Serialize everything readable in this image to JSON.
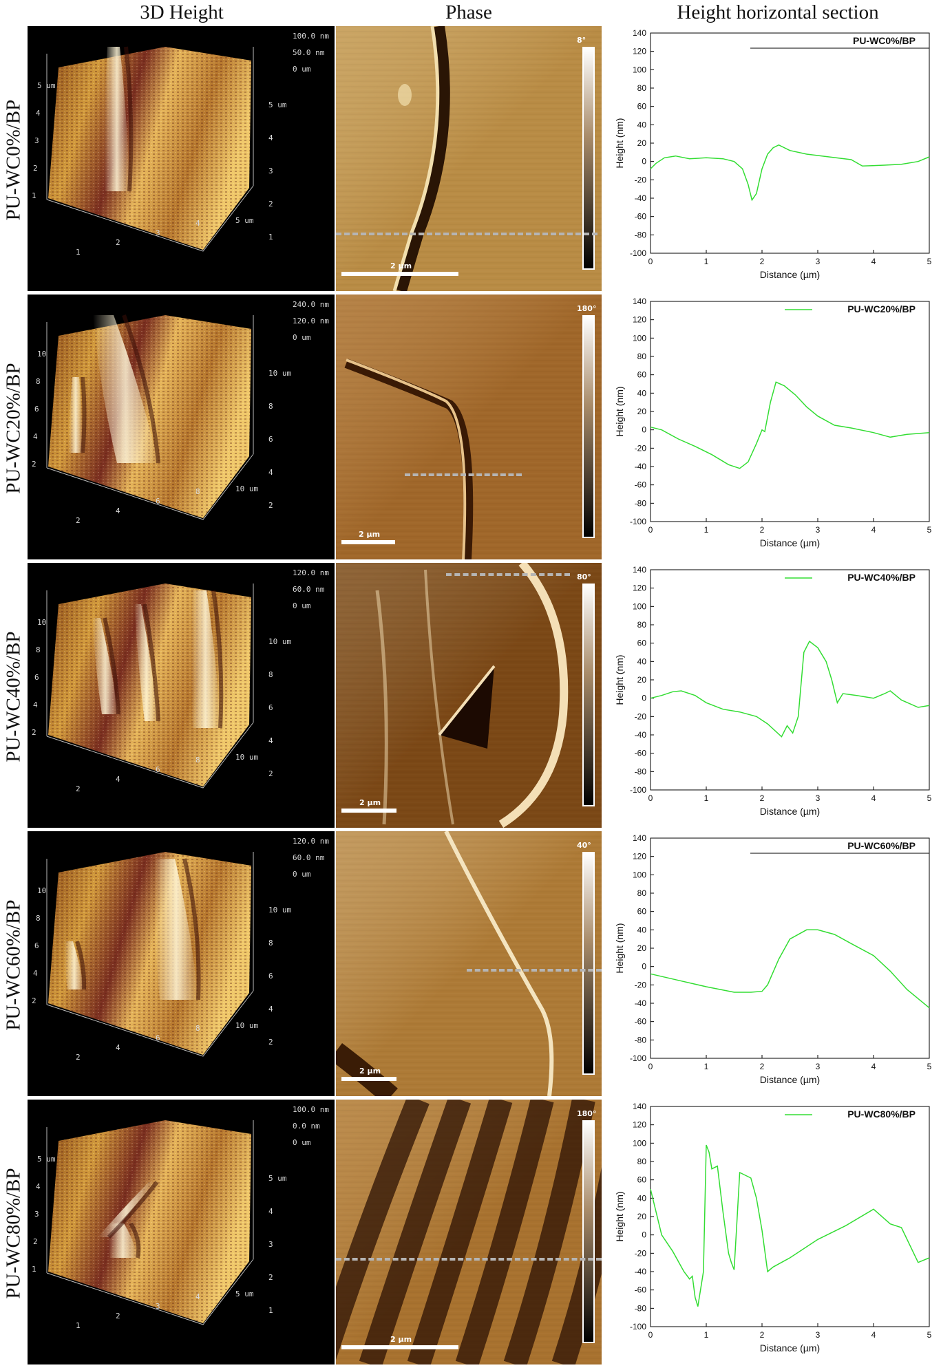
{
  "columns": {
    "height3d": "3D Height",
    "phase": "Phase",
    "section": "Height horizontal section"
  },
  "samples": [
    {
      "label": "PU-WC0%/BP",
      "height3d": {
        "z_scale": [
          "100.0 nm",
          "50.0 nm",
          "0 um"
        ],
        "x_ticks": [
          "1",
          "2",
          "3",
          "4",
          "5 um"
        ],
        "y_ticks": [
          "1",
          "2",
          "3",
          "4",
          "5 um"
        ],
        "left_ticks": [
          "1",
          "2",
          "3",
          "4",
          "5 um"
        ]
      },
      "phase": {
        "colorbar_max": "8°",
        "scalebar": "2 µm",
        "colors": {
          "base": "#b98c45",
          "dark": "#2a1505",
          "light": "#f2dfae"
        }
      }
    },
    {
      "label": "PU-WC20%/BP",
      "height3d": {
        "z_scale": [
          "240.0 nm",
          "120.0 nm",
          "0 um"
        ],
        "x_ticks": [
          "2",
          "4",
          "6",
          "8",
          "10 um"
        ],
        "y_ticks": [
          "2",
          "4",
          "6",
          "8",
          "10 um"
        ],
        "left_ticks": [
          "2",
          "4",
          "6",
          "8",
          "10"
        ]
      },
      "phase": {
        "colorbar_max": "180°",
        "scalebar": "2 µm",
        "colors": {
          "base": "#a0672a",
          "dark": "#3a1a05",
          "light": "#e7c28a"
        }
      }
    },
    {
      "label": "PU-WC40%/BP",
      "height3d": {
        "z_scale": [
          "120.0 nm",
          "60.0 nm",
          "0 um"
        ],
        "x_ticks": [
          "2",
          "4",
          "6",
          "8",
          "10 um"
        ],
        "y_ticks": [
          "2",
          "4",
          "6",
          "8",
          "10 um"
        ],
        "left_ticks": [
          "2",
          "4",
          "6",
          "8",
          "10"
        ]
      },
      "phase": {
        "colorbar_max": "80°",
        "scalebar": "2 µm",
        "colors": {
          "base": "#9b5c1c",
          "dark": "#1c0a02",
          "light": "#f4dfb6"
        }
      }
    },
    {
      "label": "PU-WC60%/BP",
      "height3d": {
        "z_scale": [
          "120.0 nm",
          "60.0 nm",
          "0 um"
        ],
        "x_ticks": [
          "2",
          "4",
          "6",
          "8",
          "10 um"
        ],
        "y_ticks": [
          "2",
          "4",
          "6",
          "8",
          "10 um"
        ],
        "left_ticks": [
          "2",
          "4",
          "6",
          "8",
          "10"
        ]
      },
      "phase": {
        "colorbar_max": "40°",
        "scalebar": "2 µm",
        "colors": {
          "base": "#ad7a36",
          "dark": "#3a1c06",
          "light": "#f4e4bf"
        }
      }
    },
    {
      "label": "PU-WC80%/BP",
      "height3d": {
        "z_scale": [
          "100.0 nm",
          "0.0 nm",
          "0 um"
        ],
        "x_ticks": [
          "1",
          "2",
          "3",
          "4",
          "5 um"
        ],
        "y_ticks": [
          "1",
          "2",
          "3",
          "4",
          "5 um"
        ],
        "left_ticks": [
          "1",
          "2",
          "3",
          "4",
          "5 um"
        ]
      },
      "phase": {
        "colorbar_max": "180°",
        "scalebar": "2 µm",
        "colors": {
          "base": "#a8722f",
          "dark": "#2c1204",
          "light": "#e9c994"
        }
      }
    }
  ],
  "chart_data": [
    {
      "type": "line",
      "legend": "PU-WC0%/BP",
      "legend_style": "bar",
      "xlabel": "Distance (µm)",
      "ylabel": "Height (nm)",
      "xlim": [
        0,
        5
      ],
      "ylim": [
        -100,
        140
      ],
      "xticks": [
        0,
        1,
        2,
        3,
        4,
        5
      ],
      "yticks": [
        -100,
        -80,
        -60,
        -40,
        -20,
        0,
        20,
        40,
        60,
        80,
        100,
        120,
        140
      ],
      "color": "#33dd33",
      "x": [
        0,
        0.1,
        0.25,
        0.45,
        0.7,
        1.0,
        1.3,
        1.5,
        1.65,
        1.75,
        1.82,
        1.9,
        2.0,
        2.1,
        2.2,
        2.3,
        2.5,
        2.8,
        3.2,
        3.6,
        3.8,
        4.2,
        4.5,
        4.8,
        5.0
      ],
      "y": [
        -8,
        -2,
        4,
        6,
        3,
        4,
        3,
        0,
        -8,
        -25,
        -42,
        -35,
        -8,
        8,
        15,
        18,
        12,
        8,
        5,
        2,
        -5,
        -4,
        -3,
        0,
        5
      ]
    },
    {
      "type": "line",
      "legend": "PU-WC20%/BP",
      "legend_style": "line",
      "xlabel": "Distance (µm)",
      "ylabel": "Height (nm)",
      "xlim": [
        0,
        5
      ],
      "ylim": [
        -100,
        140
      ],
      "xticks": [
        0,
        1,
        2,
        3,
        4,
        5
      ],
      "yticks": [
        -100,
        -80,
        -60,
        -40,
        -20,
        0,
        20,
        40,
        60,
        80,
        100,
        120,
        140
      ],
      "color": "#33dd33",
      "x": [
        0,
        0.2,
        0.5,
        0.8,
        1.1,
        1.4,
        1.6,
        1.75,
        1.9,
        2.0,
        2.05,
        2.15,
        2.25,
        2.4,
        2.6,
        2.8,
        3.0,
        3.3,
        3.6,
        4.0,
        4.3,
        4.6,
        5.0
      ],
      "y": [
        3,
        0,
        -10,
        -18,
        -27,
        -38,
        -42,
        -35,
        -15,
        0,
        -2,
        30,
        52,
        48,
        38,
        25,
        15,
        5,
        2,
        -3,
        -8,
        -5,
        -3
      ]
    },
    {
      "type": "line",
      "legend": "PU-WC40%/BP",
      "legend_style": "line",
      "xlabel": "Distance (µm)",
      "ylabel": "Height (nm)",
      "xlim": [
        0,
        5
      ],
      "ylim": [
        -100,
        140
      ],
      "xticks": [
        0,
        1,
        2,
        3,
        4,
        5
      ],
      "yticks": [
        -100,
        -80,
        -60,
        -40,
        -20,
        0,
        20,
        40,
        60,
        80,
        100,
        120,
        140
      ],
      "color": "#33dd33",
      "x": [
        0,
        0.2,
        0.4,
        0.55,
        0.8,
        1.0,
        1.3,
        1.6,
        1.9,
        2.1,
        2.35,
        2.45,
        2.55,
        2.65,
        2.75,
        2.85,
        3.0,
        3.15,
        3.25,
        3.35,
        3.45,
        3.7,
        4.0,
        4.2,
        4.3,
        4.5,
        4.8,
        5.0
      ],
      "y": [
        0,
        3,
        7,
        8,
        3,
        -5,
        -12,
        -15,
        -20,
        -28,
        -42,
        -30,
        -38,
        -20,
        50,
        62,
        55,
        40,
        20,
        -5,
        5,
        3,
        0,
        5,
        8,
        -2,
        -10,
        -8
      ]
    },
    {
      "type": "line",
      "legend": "PU-WC60%/BP",
      "legend_style": "bar",
      "xlabel": "Distance (µm)",
      "ylabel": "Height (nm)",
      "xlim": [
        0,
        5
      ],
      "ylim": [
        -100,
        140
      ],
      "xticks": [
        0,
        1,
        2,
        3,
        4,
        5
      ],
      "yticks": [
        -100,
        -80,
        -60,
        -40,
        -20,
        0,
        20,
        40,
        60,
        80,
        100,
        120,
        140
      ],
      "color": "#33dd33",
      "x": [
        0,
        0.5,
        1.0,
        1.5,
        1.8,
        2.0,
        2.1,
        2.3,
        2.5,
        2.8,
        3.0,
        3.3,
        3.6,
        4.0,
        4.3,
        4.6,
        5.0
      ],
      "y": [
        -8,
        -15,
        -22,
        -28,
        -28,
        -27,
        -20,
        8,
        30,
        40,
        40,
        35,
        25,
        12,
        -5,
        -25,
        -45
      ]
    },
    {
      "type": "line",
      "legend": "PU-WC80%/BP",
      "legend_style": "line",
      "xlabel": "Distance (µm)",
      "ylabel": "Height (nm)",
      "xlim": [
        0,
        5
      ],
      "ylim": [
        -100,
        140
      ],
      "xticks": [
        0,
        1,
        2,
        3,
        4,
        5
      ],
      "yticks": [
        -100,
        -80,
        -60,
        -40,
        -20,
        0,
        20,
        40,
        60,
        80,
        100,
        120,
        140
      ],
      "color": "#33dd33",
      "x": [
        0,
        0.1,
        0.2,
        0.4,
        0.6,
        0.7,
        0.75,
        0.8,
        0.85,
        0.95,
        1.0,
        1.05,
        1.1,
        1.2,
        1.3,
        1.4,
        1.45,
        1.5,
        1.55,
        1.6,
        1.7,
        1.8,
        1.9,
        2.0,
        2.1,
        2.2,
        2.5,
        3.0,
        3.5,
        4.0,
        4.3,
        4.5,
        4.8,
        5.0
      ],
      "y": [
        50,
        25,
        0,
        -18,
        -40,
        -48,
        -45,
        -68,
        -78,
        -40,
        98,
        90,
        72,
        75,
        25,
        -20,
        -30,
        -38,
        15,
        68,
        65,
        62,
        40,
        5,
        -40,
        -35,
        -25,
        -5,
        10,
        28,
        12,
        8,
        -30,
        -25
      ]
    }
  ]
}
